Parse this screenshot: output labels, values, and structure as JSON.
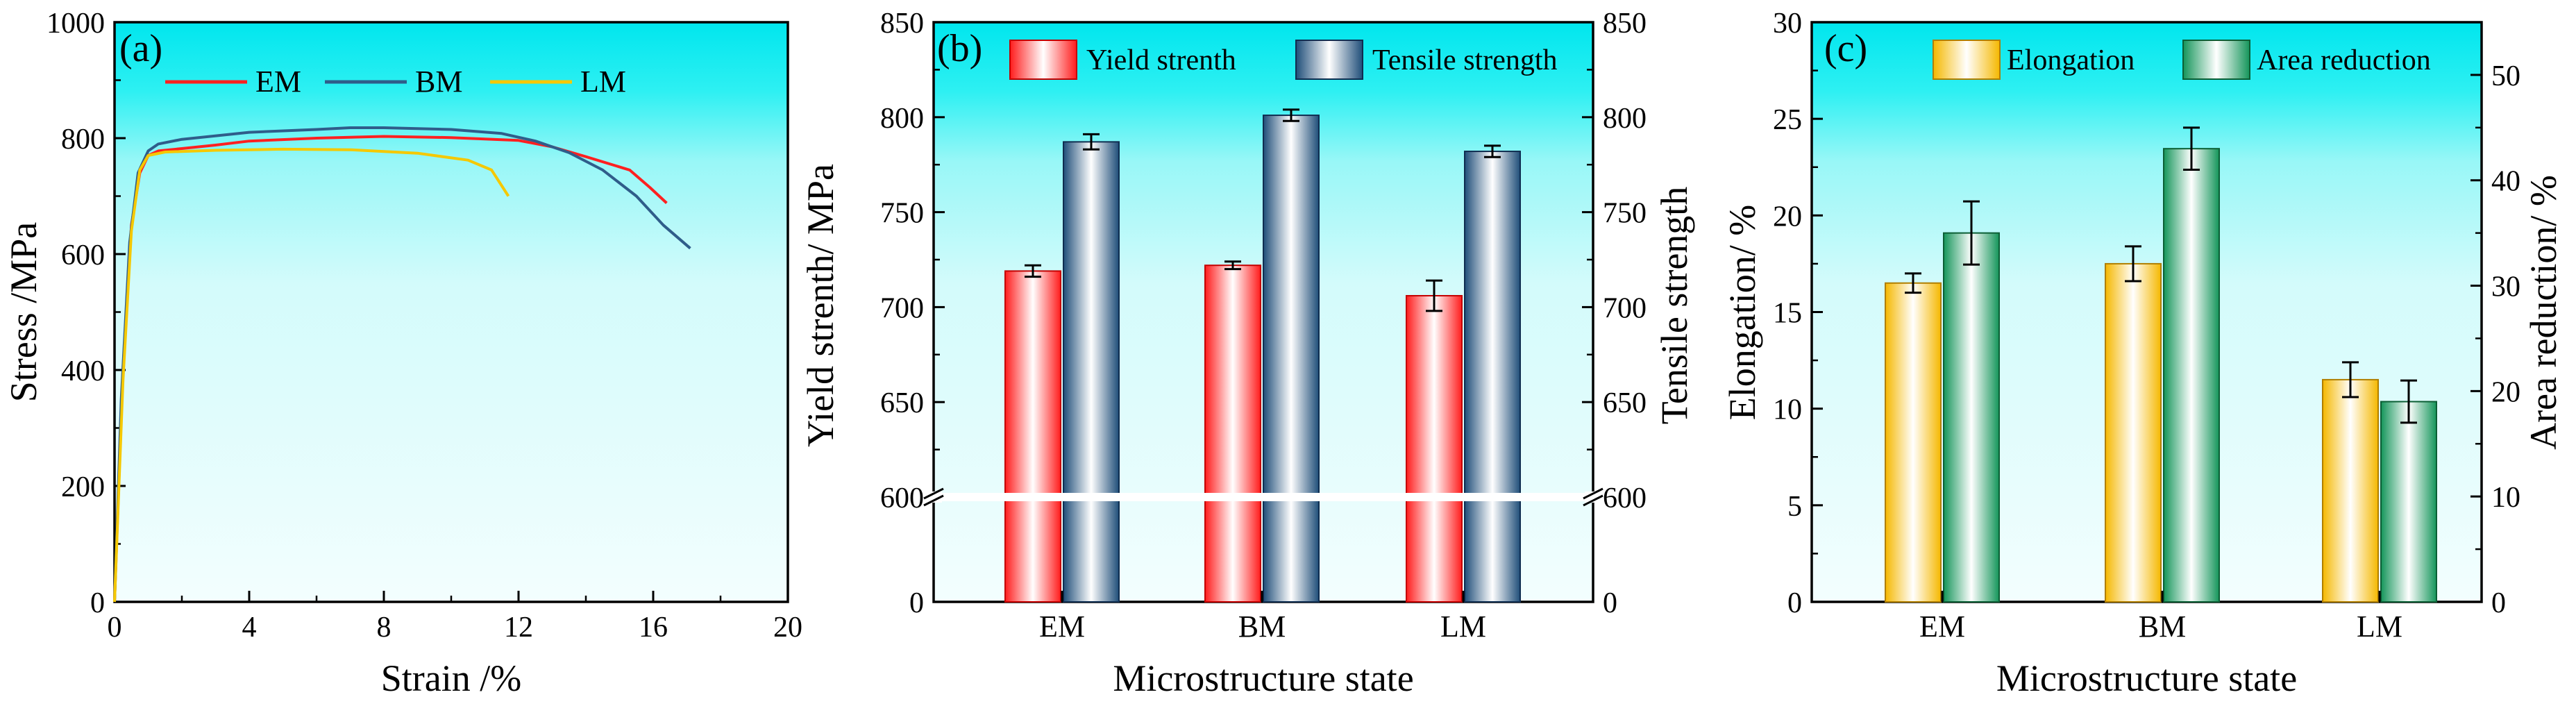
{
  "chart_data": [
    {
      "type": "line",
      "panel_label": "(a)",
      "xlabel": "Strain /%",
      "ylabel": "Stress /MPa",
      "xlim": [
        0,
        20
      ],
      "ylim": [
        0,
        1000
      ],
      "xticks": [
        "0",
        "4",
        "8",
        "12",
        "16",
        "20"
      ],
      "yticks": [
        "0",
        "200",
        "400",
        "600",
        "800",
        "1000"
      ],
      "legend": "top-right",
      "series": [
        {
          "name": "EM",
          "color": "#ff2020",
          "points": [
            [
              0,
              0
            ],
            [
              0.25,
              400
            ],
            [
              0.5,
              650
            ],
            [
              0.75,
              740
            ],
            [
              1.0,
              770
            ],
            [
              1.3,
              778
            ],
            [
              2,
              782
            ],
            [
              3,
              788
            ],
            [
              4,
              795
            ],
            [
              6,
              800
            ],
            [
              8,
              803
            ],
            [
              10,
              801
            ],
            [
              12,
              796
            ],
            [
              13,
              785
            ],
            [
              14,
              768
            ],
            [
              15.3,
              745
            ],
            [
              15.9,
              715
            ],
            [
              16.4,
              688
            ]
          ]
        },
        {
          "name": "BM",
          "color": "#2f5d8a",
          "points": [
            [
              0,
              0
            ],
            [
              0.2,
              350
            ],
            [
              0.45,
              620
            ],
            [
              0.7,
              740
            ],
            [
              1.0,
              778
            ],
            [
              1.3,
              790
            ],
            [
              2,
              798
            ],
            [
              4,
              810
            ],
            [
              6,
              815
            ],
            [
              7,
              818
            ],
            [
              8,
              818
            ],
            [
              10,
              815
            ],
            [
              11.5,
              808
            ],
            [
              12.5,
              795
            ],
            [
              13.5,
              775
            ],
            [
              14.5,
              745
            ],
            [
              15.5,
              700
            ],
            [
              16.3,
              650
            ],
            [
              17.1,
              610
            ]
          ]
        },
        {
          "name": "LM",
          "color": "#f5c800",
          "points": [
            [
              0,
              0
            ],
            [
              0.25,
              380
            ],
            [
              0.5,
              640
            ],
            [
              0.75,
              745
            ],
            [
              1.0,
              770
            ],
            [
              1.5,
              776
            ],
            [
              3,
              779
            ],
            [
              5,
              781
            ],
            [
              7,
              780
            ],
            [
              9,
              774
            ],
            [
              10.5,
              762
            ],
            [
              11.2,
              745
            ],
            [
              11.7,
              700
            ]
          ]
        }
      ]
    },
    {
      "type": "bar",
      "panel_label": "(b)",
      "categories": [
        "EM",
        "BM",
        "LM"
      ],
      "xlabel": "Microstructure state",
      "ylabel": "Yield strenth/ MPa",
      "ylabel_right": "Tensile strength",
      "yticks": [
        "0",
        "600",
        "650",
        "700",
        "750",
        "800",
        "850"
      ],
      "yticks_right": [
        "0",
        "600",
        "650",
        "700",
        "750",
        "800",
        "850"
      ],
      "axis_break": "600",
      "ylim_upper": [
        600,
        850
      ],
      "series": [
        {
          "name": "Yield strenth",
          "color": "#ff2020",
          "values": [
            719,
            722,
            706
          ],
          "errors": [
            3,
            2,
            8
          ]
        },
        {
          "name": "Tensile strength",
          "color": "#1f4e79",
          "values": [
            787,
            801,
            782
          ],
          "errors": [
            4,
            3,
            3
          ]
        }
      ]
    },
    {
      "type": "bar",
      "panel_label": "(c)",
      "categories": [
        "EM",
        "BM",
        "LM"
      ],
      "xlabel": "Microstructure state",
      "ylabel": "Elongation/ %",
      "ylabel_right": "Area reduction/ %",
      "ylim": [
        0,
        30
      ],
      "ylim_right": [
        0,
        55
      ],
      "yticks": [
        "0",
        "5",
        "10",
        "15",
        "20",
        "25",
        "30"
      ],
      "yticks_right": [
        "0",
        "10",
        "20",
        "30",
        "40",
        "50"
      ],
      "series": [
        {
          "name": "Elongation",
          "axis": "left",
          "color": "#f5b800",
          "values": [
            16.5,
            17.5,
            11.5
          ],
          "errors": [
            0.5,
            0.9,
            0.9
          ]
        },
        {
          "name": "Area reduction",
          "axis": "right",
          "color": "#1f9e5a",
          "values": [
            35,
            43,
            19
          ],
          "errors": [
            3,
            2,
            2
          ]
        }
      ]
    }
  ]
}
